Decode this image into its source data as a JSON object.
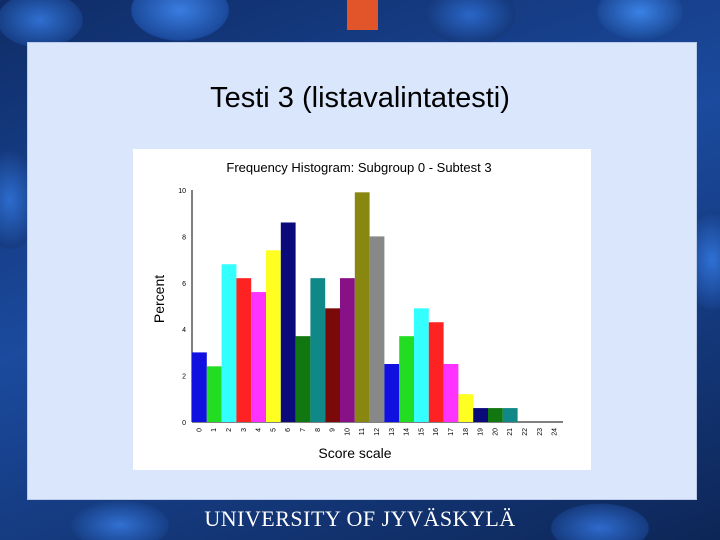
{
  "slide": {
    "title": "Testi 3 (listavalintatesti)",
    "footer": "UNIVERSITY OF JYVÄSKYLÄ"
  },
  "colors": {
    "accent": "#e2552a",
    "panel": "#d9e6fb"
  },
  "chart_data": {
    "type": "bar",
    "title": "Frequency Histogram:  Subgroup 0 - Subtest 3",
    "xlabel": "Score scale",
    "ylabel": "Percent",
    "ylim": [
      0,
      10
    ],
    "yticks": [
      0,
      2,
      4,
      6,
      8,
      10
    ],
    "grid": false,
    "legend": "none",
    "categories": [
      "0",
      "1",
      "2",
      "3",
      "4",
      "5",
      "6",
      "7",
      "8",
      "9",
      "10",
      "11",
      "12",
      "13",
      "14",
      "15",
      "16",
      "17",
      "18",
      "19",
      "20",
      "21",
      "22",
      "23",
      "24"
    ],
    "values": [
      3.0,
      2.4,
      6.8,
      6.2,
      5.6,
      7.4,
      8.6,
      3.7,
      6.2,
      4.9,
      6.2,
      9.9,
      8.0,
      2.5,
      3.7,
      4.9,
      4.3,
      2.5,
      1.2,
      0.6,
      0.6,
      0.6,
      0,
      0,
      0
    ],
    "bar_colors": [
      "#1010e0",
      "#22dd22",
      "#33ffff",
      "#ff2222",
      "#ff33ff",
      "#ffff22",
      "#0a0a7a",
      "#117711",
      "#118888",
      "#7a0a0a",
      "#881188",
      "#888811",
      "#888888",
      "#1010e0",
      "#22dd22",
      "#33ffff",
      "#ff2222",
      "#ff33ff",
      "#ffff22",
      "#0a0a7a",
      "#117711",
      "#118888",
      "#7a0a0a",
      "#881188",
      "#888811"
    ]
  }
}
